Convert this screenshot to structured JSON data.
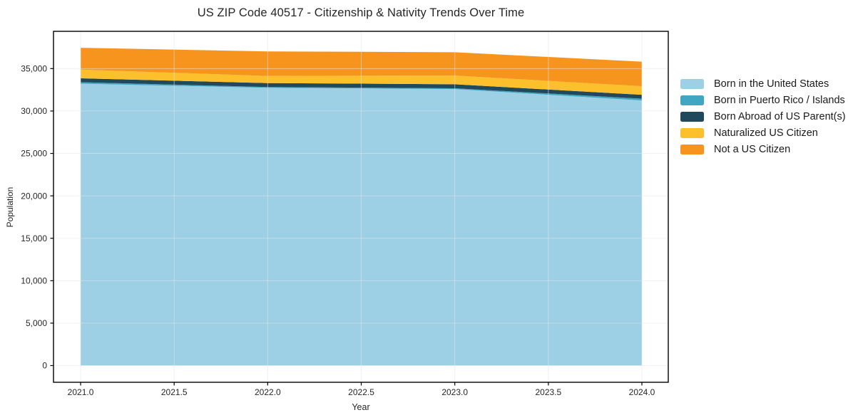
{
  "figure": {
    "title": "US ZIP Code 40517 - Citizenship & Nativity Trends Over Time"
  },
  "chart_data": {
    "type": "area",
    "stacked": true,
    "title": "US ZIP Code 40517 - Citizenship & Nativity Trends Over Time",
    "xlabel": "Year",
    "ylabel": "Population",
    "x": [
      2021,
      2022,
      2023,
      2024
    ],
    "series": [
      {
        "name": "Born in the United States",
        "color": "#9DCFE5",
        "values": [
          33220,
          32730,
          32580,
          31240
        ]
      },
      {
        "name": "Born in Puerto Rico / Islands",
        "color": "#41A6C2",
        "values": [
          170,
          100,
          100,
          210
        ]
      },
      {
        "name": "Born Abroad of US Parent(s)",
        "color": "#20495C",
        "values": [
          460,
          460,
          470,
          460
        ]
      },
      {
        "name": "Naturalized US Citizen",
        "color": "#FCC02C",
        "values": [
          1030,
          840,
          1030,
          1010
        ]
      },
      {
        "name": "Not a US Citizen",
        "color": "#F7941E",
        "values": [
          2570,
          2890,
          2750,
          2890
        ]
      }
    ],
    "totals": [
      37450,
      37020,
      36930,
      35810
    ],
    "xlim": [
      2020.855,
      2024.141
    ],
    "ylim": [
      -1970,
      39390
    ],
    "xticks": {
      "values": [
        2021.0,
        2021.5,
        2022.0,
        2022.5,
        2023.0,
        2023.5,
        2024.0
      ],
      "labels": [
        "2021.0",
        "2021.5",
        "2022.0",
        "2022.5",
        "2023.0",
        "2023.5",
        "2024.0"
      ]
    },
    "yticks": {
      "values": [
        0,
        5000,
        10000,
        15000,
        20000,
        25000,
        30000,
        35000
      ],
      "labels": [
        "0",
        "5,000",
        "10,000",
        "15,000",
        "20,000",
        "25,000",
        "30,000",
        "35,000"
      ]
    },
    "grid": true,
    "legend_position": "right"
  },
  "style_colors": {
    "axis_frame": "#000000",
    "tick_text": "#262626",
    "grid": "#e6e6e6"
  }
}
